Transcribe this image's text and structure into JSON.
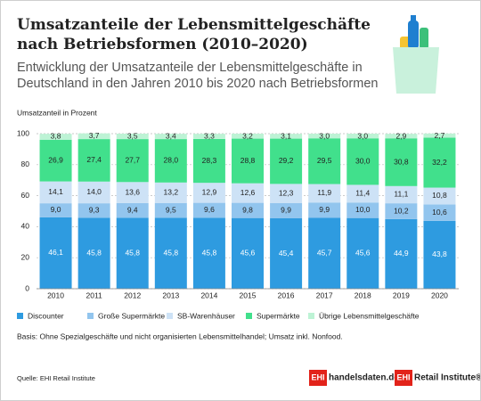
{
  "chart_data": {
    "type": "stacked_bar",
    "title": "Umsatzanteile der Lebensmittelgeschäfte nach Betriebsformen (2010–2020)",
    "subtitle": "Entwicklung der Umsatzanteile der Lebensmittelgeschäfte in Deutschland in den Jahren 2010 bis 2020 nach Betriebsformen",
    "y_label": "Umsatzanteil in Prozent",
    "note": "Basis: Ohne Spezialgeschäfte und nicht organisierten Lebensmittelhandel; Umsatz inkl. Nonfood.",
    "source": "Quelle: EHI Retail Institute",
    "logos": [
      {
        "badge": "EHI",
        "text": "handelsdaten.de"
      },
      {
        "badge": "EHI",
        "text": "Retail Institute®"
      }
    ],
    "categories": [
      "2010",
      "2011",
      "2012",
      "2013",
      "2014",
      "2015",
      "2016",
      "2017",
      "2018",
      "2019",
      "2020"
    ],
    "ylim": [
      0,
      100
    ],
    "yticks": [
      0,
      20,
      40,
      60,
      80,
      100
    ],
    "grid": true,
    "legend": "bottom",
    "series": [
      {
        "name": "Discounter",
        "color": "#2e9be0",
        "values": [
          46.1,
          45.8,
          45.8,
          45.8,
          45.8,
          45.6,
          45.4,
          45.7,
          45.6,
          44.9,
          43.8
        ],
        "value_labels": [
          "46,1",
          "45,8",
          "45,8",
          "45,8",
          "45,8",
          "45,6",
          "45,4",
          "45,7",
          "45,6",
          "44,9",
          "43,8"
        ]
      },
      {
        "name": "Große Supermärkte",
        "color": "#92c5ee",
        "values": [
          9.0,
          9.3,
          9.4,
          9.5,
          9.6,
          9.8,
          9.9,
          9.9,
          10.0,
          10.2,
          10.6
        ],
        "value_labels": [
          "9,0",
          "9,3",
          "9,4",
          "9,5",
          "9,6",
          "9,8",
          "9,9",
          "9,9",
          "10,0",
          "10,2",
          "10,6"
        ]
      },
      {
        "name": "SB-Warenhäuser",
        "color": "#cde2f6",
        "values": [
          14.1,
          14.0,
          13.6,
          13.2,
          12.9,
          12.6,
          12.3,
          11.9,
          11.4,
          11.1,
          10.8
        ],
        "value_labels": [
          "14,1",
          "14,0",
          "13,6",
          "13,2",
          "12,9",
          "12,6",
          "12,3",
          "11,9",
          "11,4",
          "11,1",
          "10,8"
        ]
      },
      {
        "name": "Supermärkte",
        "color": "#41e08c",
        "values": [
          26.9,
          27.4,
          27.7,
          28.0,
          28.3,
          28.8,
          29.2,
          29.5,
          30.0,
          30.8,
          32.2
        ],
        "value_labels": [
          "26,9",
          "27,4",
          "27,7",
          "28,0",
          "28,3",
          "28,8",
          "29,2",
          "29,5",
          "30,0",
          "30,8",
          "32,2"
        ]
      },
      {
        "name": "Übrige Lebensmittelgeschäfte",
        "color": "#bdf3d5",
        "values": [
          3.8,
          3.7,
          3.5,
          3.4,
          3.3,
          3.2,
          3.1,
          3.0,
          3.0,
          2.9,
          2.7
        ],
        "value_labels": [
          "3,8",
          "3,7",
          "3,5",
          "3,4",
          "3,3",
          "3,2",
          "3,1",
          "3,0",
          "3,0",
          "2,9",
          "2,7"
        ]
      }
    ]
  }
}
